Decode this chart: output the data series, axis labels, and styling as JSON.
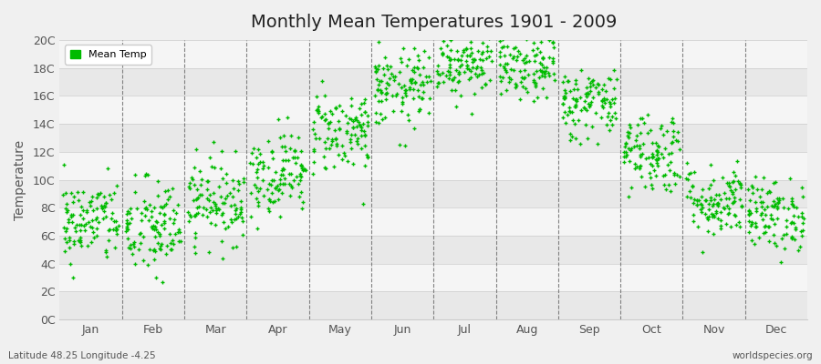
{
  "title": "Monthly Mean Temperatures 1901 - 2009",
  "ylabel": "Temperature",
  "legend_label": "Mean Temp",
  "subtitle_left": "Latitude 48.25 Longitude -4.25",
  "subtitle_right": "worldspecies.org",
  "fig_bg_color": "#f0f0f0",
  "plot_bg_color": "#ffffff",
  "band_color_light": "#f5f5f5",
  "band_color_dark": "#e8e8e8",
  "dot_color": "#00bb00",
  "dot_size": 6,
  "marker": "+",
  "ylim": [
    0,
    20
  ],
  "yticks": [
    0,
    2,
    4,
    6,
    8,
    10,
    12,
    14,
    16,
    18,
    20
  ],
  "ytick_labels": [
    "0C",
    "2C",
    "4C",
    "6C",
    "8C",
    "10C",
    "12C",
    "14C",
    "16C",
    "18C",
    "20C"
  ],
  "months": [
    "Jan",
    "Feb",
    "Mar",
    "Apr",
    "May",
    "Jun",
    "Jul",
    "Aug",
    "Sep",
    "Oct",
    "Nov",
    "Dec"
  ],
  "month_means": [
    7.0,
    6.5,
    8.5,
    10.5,
    13.5,
    16.5,
    18.5,
    18.0,
    15.5,
    12.0,
    8.5,
    7.5
  ],
  "month_stds": [
    1.5,
    1.8,
    1.5,
    1.5,
    1.5,
    1.4,
    1.3,
    1.2,
    1.3,
    1.5,
    1.3,
    1.3
  ],
  "n_years": 109,
  "seed": 42
}
